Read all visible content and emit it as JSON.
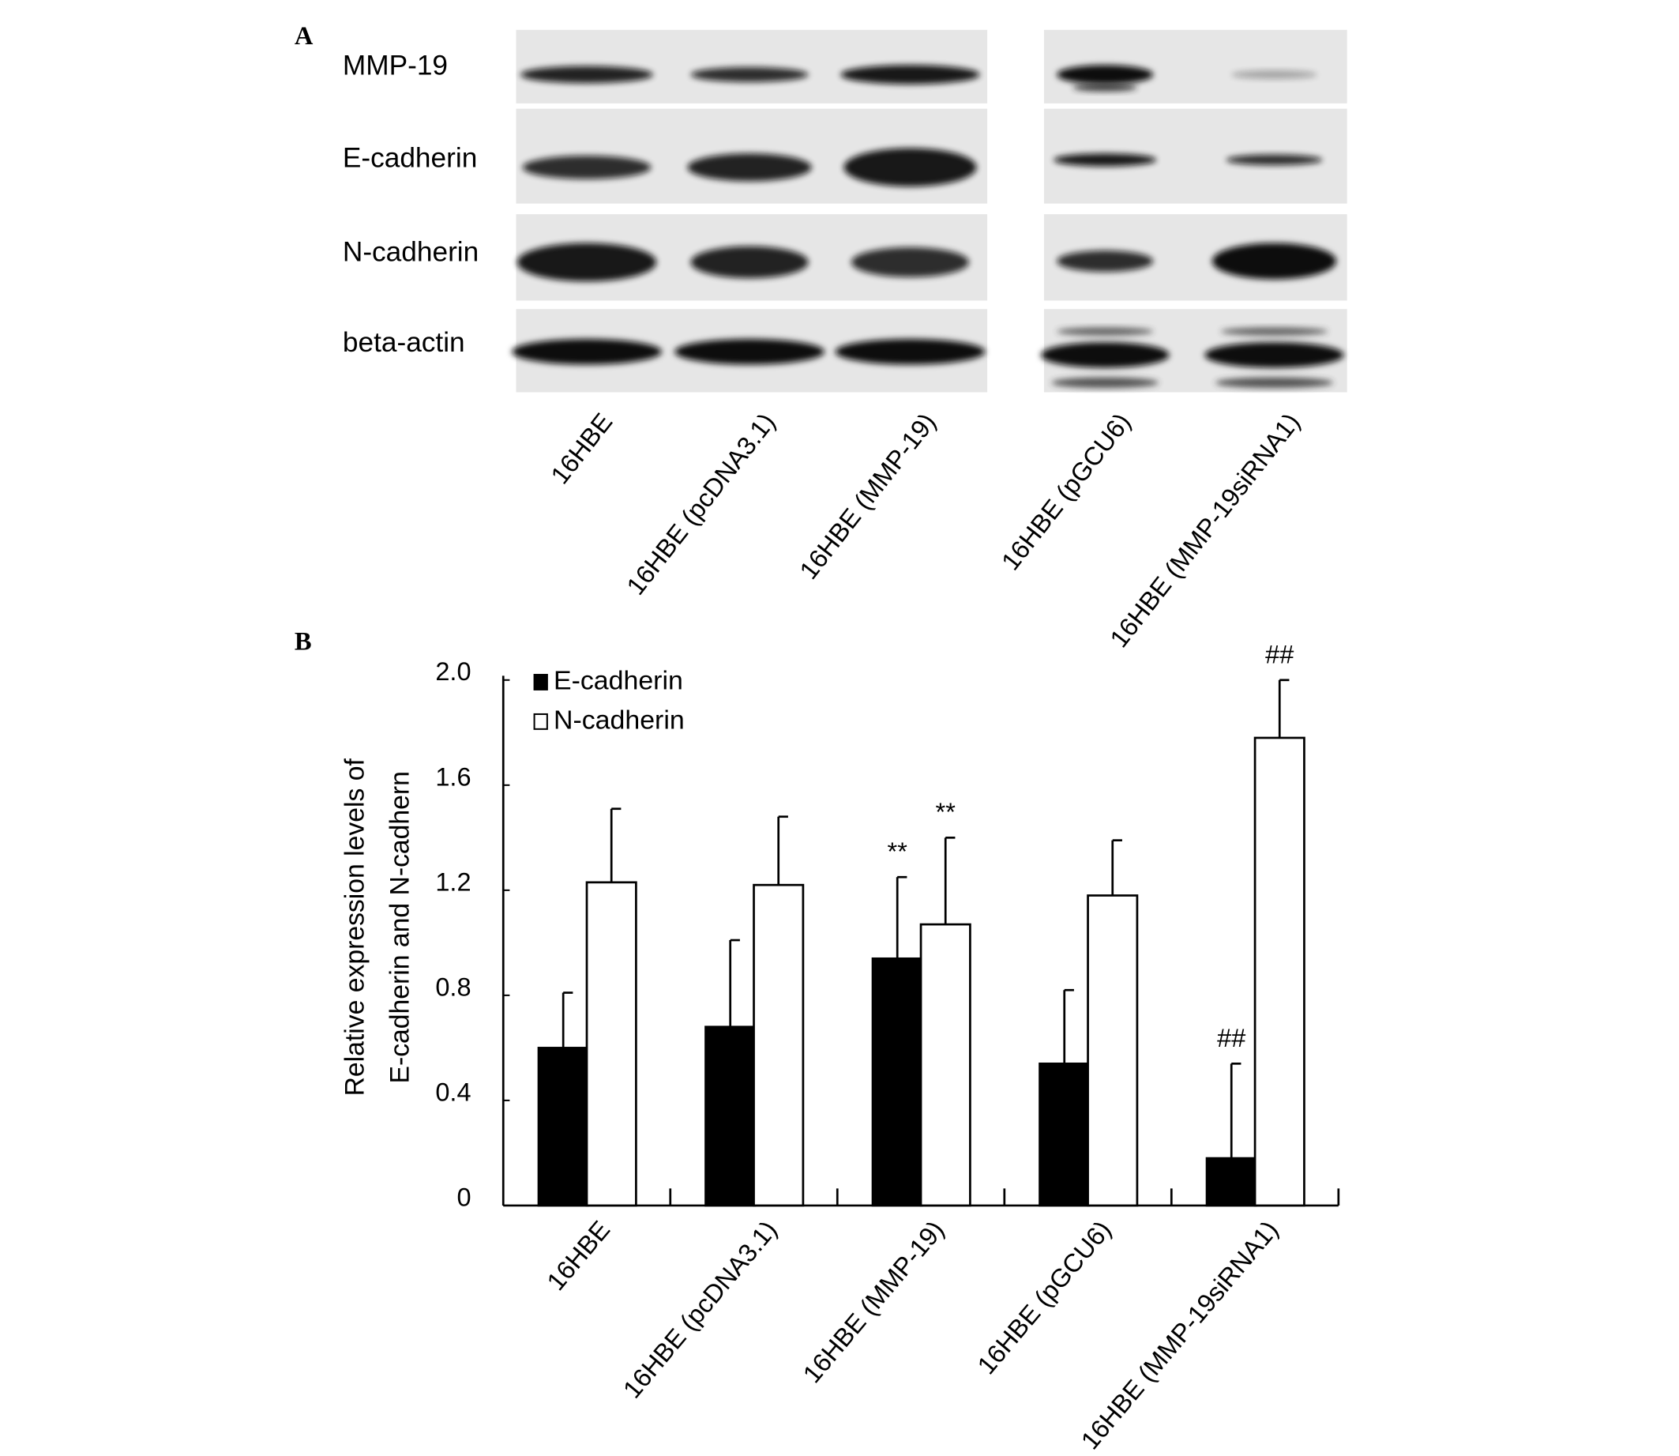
{
  "panels": {
    "a": "A",
    "b": "B"
  },
  "blot": {
    "proteins": [
      "MMP-19",
      "E-cadherin",
      "N-cadherin",
      "beta-actin"
    ],
    "lanes": [
      "16HBE",
      "16HBE (pcDNA3.1)",
      "16HBE (MMP-19)",
      "16HBE (pGCU6)",
      "16HBE (MMP-19siRNA1)"
    ]
  },
  "chart_data": {
    "type": "bar",
    "y_label": [
      "Relative expression levels of",
      "E-cadherin and N-cadhern"
    ],
    "categories": [
      "16HBE",
      "16HBE (pcDNA3.1)",
      "16HBE (MMP-19)",
      "16HBE (pGCU6)",
      "16HBE (MMP-19siRNA1)"
    ],
    "series": [
      {
        "name": "E-cadherin",
        "color": "#000000",
        "values": [
          0.6,
          0.68,
          0.94,
          0.54,
          0.18
        ],
        "errors": [
          0.21,
          0.33,
          0.31,
          0.28,
          0.36
        ],
        "labels": [
          null,
          null,
          "**",
          null,
          "##"
        ]
      },
      {
        "name": "N-cadherin",
        "color": "#ffffff",
        "values": [
          1.23,
          1.22,
          1.07,
          1.18,
          1.78
        ],
        "errors": [
          0.28,
          0.26,
          0.33,
          0.21,
          0.22
        ],
        "labels": [
          null,
          null,
          "**",
          null,
          "##"
        ]
      }
    ],
    "ylim": [
      0,
      2
    ],
    "yticks": [
      0,
      0.4,
      0.8,
      1.2,
      1.6,
      {
        "value": 2,
        "label": "2.0"
      }
    ],
    "legend": "upper left",
    "grid": false
  }
}
